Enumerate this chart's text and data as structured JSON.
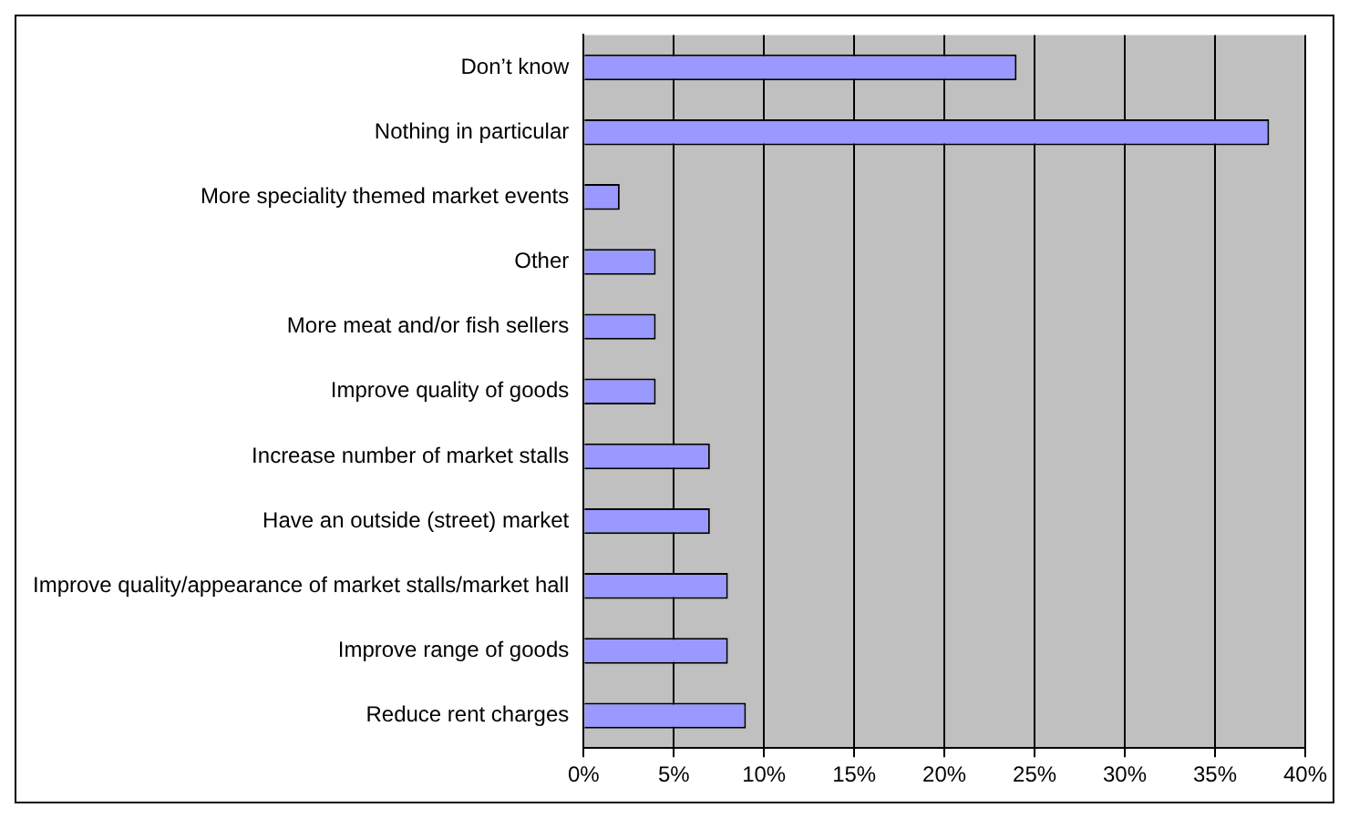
{
  "chart_data": {
    "type": "bar",
    "orientation": "horizontal",
    "categories": [
      "Don’t know",
      "Nothing in particular",
      "More speciality themed market events",
      "Other",
      "More meat and/or fish sellers",
      "Improve quality of goods",
      "Increase number of market stalls",
      "Have an outside (street) market",
      "Improve quality/appearance of market stalls/market hall",
      "Improve range of goods",
      "Reduce rent charges"
    ],
    "values": [
      24,
      38,
      2,
      4,
      4,
      4,
      7,
      7,
      8,
      8,
      9
    ],
    "color": "#9999ff",
    "xlim": [
      0,
      40
    ],
    "xticks": [
      {
        "value": 0,
        "label": "0%"
      },
      {
        "value": 5,
        "label": "5%"
      },
      {
        "value": 10,
        "label": "10%"
      },
      {
        "value": 15,
        "label": "15%"
      },
      {
        "value": 20,
        "label": "20%"
      },
      {
        "value": 25,
        "label": "25%"
      },
      {
        "value": 30,
        "label": "30%"
      },
      {
        "value": 35,
        "label": "35%"
      },
      {
        "value": 40,
        "label": "40%"
      }
    ],
    "grid": "x",
    "legend": false
  }
}
